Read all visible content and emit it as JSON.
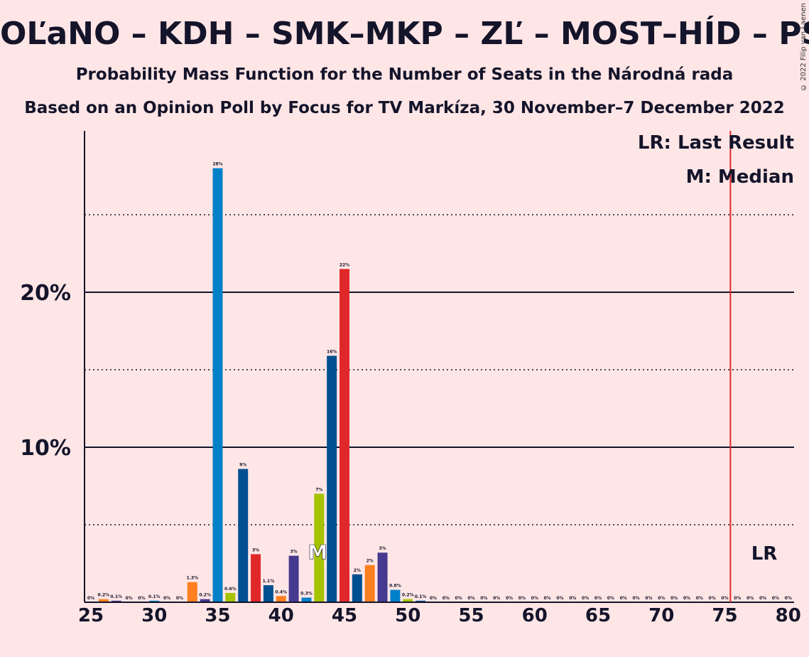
{
  "title": "OĽaNO – KDH – SMK–MKP – ZĽ – MOST–HÍD – PS–S",
  "subtitle": "Probability Mass Function for the Number of Seats in the Národná rada",
  "subtitle2": "Based on an Opinion Poll by Focus for TV Markíza, 30 November–7 December 2022",
  "copyright": "© 2022 Filip van Laenen",
  "legend": {
    "last_result": "LR: Last Result",
    "median": "M: Median"
  },
  "lr_marker": "LR",
  "median_marker": "M",
  "colors": {
    "background": "#FFE6E6",
    "lr_line": "#E0282A",
    "axis": "#14142A"
  },
  "chart_data": {
    "type": "bar",
    "xlim": [
      25,
      80
    ],
    "ylim": [
      0,
      30
    ],
    "x_ticks": [
      "25",
      "30",
      "35",
      "40",
      "45",
      "50",
      "55",
      "60",
      "65",
      "70",
      "75",
      "80"
    ],
    "y_ticks": [
      "10%",
      "20%"
    ],
    "grid": "solid at 10% and 20%, dotted at 5%, 15%, 25%",
    "last_result": 76,
    "median": 43,
    "bars": [
      {
        "x": 25,
        "value": 0,
        "label": "0%",
        "color": "#0080C8"
      },
      {
        "x": 26,
        "value": 0.2,
        "label": "0.2%",
        "color": "#FF7F20"
      },
      {
        "x": 27,
        "value": 0.1,
        "label": "0.1%",
        "color": "#453A8F"
      },
      {
        "x": 28,
        "value": 0,
        "label": "0%",
        "color": "#E0282A"
      },
      {
        "x": 29,
        "value": 0,
        "label": "0%",
        "color": "#005091"
      },
      {
        "x": 30,
        "value": 0.1,
        "label": "0.1%",
        "color": "#0080C8"
      },
      {
        "x": 31,
        "value": 0,
        "label": "0%",
        "color": "#A5C300"
      },
      {
        "x": 32,
        "value": 0,
        "label": "0%",
        "color": "#005091"
      },
      {
        "x": 33,
        "value": 1.3,
        "label": "1.3%",
        "color": "#FF7F20"
      },
      {
        "x": 34,
        "value": 0.2,
        "label": "0.2%",
        "color": "#453A8F"
      },
      {
        "x": 35,
        "value": 28,
        "label": "28%",
        "color": "#0080C8"
      },
      {
        "x": 36,
        "value": 0.6,
        "label": "0.6%",
        "color": "#A5C300"
      },
      {
        "x": 37,
        "value": 8.6,
        "label": "9%",
        "color": "#005091"
      },
      {
        "x": 38,
        "value": 3.1,
        "label": "3%",
        "color": "#E0282A"
      },
      {
        "x": 39,
        "value": 1.1,
        "label": "1.1%",
        "color": "#005091"
      },
      {
        "x": 40,
        "value": 0.4,
        "label": "0.4%",
        "color": "#FF7F20"
      },
      {
        "x": 41,
        "value": 3,
        "label": "3%",
        "color": "#453A8F"
      },
      {
        "x": 42,
        "value": 0.3,
        "label": "0.3%",
        "color": "#0080C8"
      },
      {
        "x": 43,
        "value": 7,
        "label": "7%",
        "color": "#A5C300"
      },
      {
        "x": 44,
        "value": 15.9,
        "label": "16%",
        "color": "#005091"
      },
      {
        "x": 45,
        "value": 21.5,
        "label": "22%",
        "color": "#E0282A"
      },
      {
        "x": 46,
        "value": 1.8,
        "label": "2%",
        "color": "#005091"
      },
      {
        "x": 47,
        "value": 2.4,
        "label": "2%",
        "color": "#FF7F20"
      },
      {
        "x": 48,
        "value": 3.2,
        "label": "3%",
        "color": "#453A8F"
      },
      {
        "x": 49,
        "value": 0.8,
        "label": "0.8%",
        "color": "#0080C8"
      },
      {
        "x": 50,
        "value": 0.2,
        "label": "0.2%",
        "color": "#A5C300"
      },
      {
        "x": 51,
        "value": 0.1,
        "label": "0.1%",
        "color": "#005091"
      },
      {
        "x": 52,
        "value": 0,
        "label": "0%",
        "color": "#E0282A"
      },
      {
        "x": 53,
        "value": 0,
        "label": "0%",
        "color": "#005091"
      },
      {
        "x": 54,
        "value": 0,
        "label": "0%",
        "color": "#FF7F20"
      },
      {
        "x": 55,
        "value": 0,
        "label": "0%",
        "color": "#453A8F"
      },
      {
        "x": 56,
        "value": 0,
        "label": "0%",
        "color": "#0080C8"
      },
      {
        "x": 57,
        "value": 0,
        "label": "0%",
        "color": "#A5C300"
      },
      {
        "x": 58,
        "value": 0,
        "label": "0%",
        "color": "#005091"
      },
      {
        "x": 59,
        "value": 0,
        "label": "0%",
        "color": "#E0282A"
      },
      {
        "x": 60,
        "value": 0,
        "label": "0%",
        "color": "#005091"
      },
      {
        "x": 61,
        "value": 0,
        "label": "0%",
        "color": "#FF7F20"
      },
      {
        "x": 62,
        "value": 0,
        "label": "0%",
        "color": "#453A8F"
      },
      {
        "x": 63,
        "value": 0,
        "label": "0%",
        "color": "#0080C8"
      },
      {
        "x": 64,
        "value": 0,
        "label": "0%",
        "color": "#A5C300"
      },
      {
        "x": 65,
        "value": 0,
        "label": "0%",
        "color": "#005091"
      },
      {
        "x": 66,
        "value": 0,
        "label": "0%",
        "color": "#E0282A"
      },
      {
        "x": 67,
        "value": 0,
        "label": "0%",
        "color": "#005091"
      },
      {
        "x": 68,
        "value": 0,
        "label": "0%",
        "color": "#FF7F20"
      },
      {
        "x": 69,
        "value": 0,
        "label": "0%",
        "color": "#453A8F"
      },
      {
        "x": 70,
        "value": 0,
        "label": "0%",
        "color": "#0080C8"
      },
      {
        "x": 71,
        "value": 0,
        "label": "0%",
        "color": "#A5C300"
      },
      {
        "x": 72,
        "value": 0,
        "label": "0%",
        "color": "#005091"
      },
      {
        "x": 73,
        "value": 0,
        "label": "0%",
        "color": "#E0282A"
      },
      {
        "x": 74,
        "value": 0,
        "label": "0%",
        "color": "#005091"
      },
      {
        "x": 75,
        "value": 0,
        "label": "0%",
        "color": "#FF7F20"
      },
      {
        "x": 76,
        "value": 0,
        "label": "0%",
        "color": "#453A8F"
      },
      {
        "x": 77,
        "value": 0,
        "label": "0%",
        "color": "#0080C8"
      },
      {
        "x": 78,
        "value": 0,
        "label": "0%",
        "color": "#A5C300"
      },
      {
        "x": 79,
        "value": 0,
        "label": "0%",
        "color": "#005091"
      },
      {
        "x": 80,
        "value": 0,
        "label": "0%",
        "color": "#E0282A"
      }
    ]
  }
}
